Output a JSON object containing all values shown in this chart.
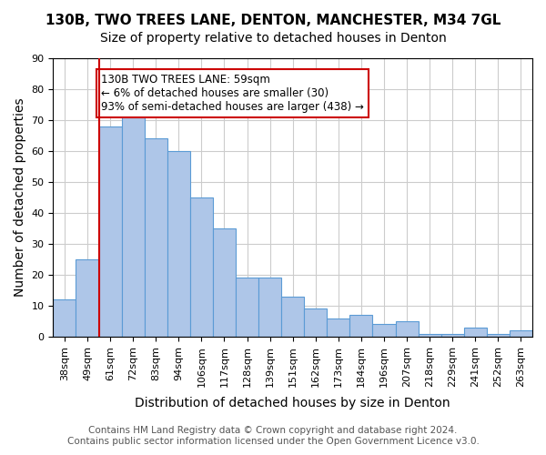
{
  "title_main": "130B, TWO TREES LANE, DENTON, MANCHESTER, M34 7GL",
  "title_sub": "Size of property relative to detached houses in Denton",
  "xlabel": "Distribution of detached houses by size in Denton",
  "ylabel": "Number of detached properties",
  "bar_heights": [
    12,
    25,
    68,
    73,
    64,
    60,
    45,
    35,
    19,
    19,
    13,
    9,
    6,
    7,
    4,
    5,
    1,
    1,
    3,
    1,
    2
  ],
  "x_labels": [
    "38sqm",
    "49sqm",
    "61sqm",
    "72sqm",
    "83sqm",
    "94sqm",
    "106sqm",
    "117sqm",
    "128sqm",
    "139sqm",
    "151sqm",
    "162sqm",
    "173sqm",
    "184sqm",
    "196sqm",
    "207sqm",
    "218sqm",
    "229sqm",
    "241sqm",
    "252sqm",
    "263sqm"
  ],
  "bar_color": "#aec6e8",
  "bar_edge_color": "#5b9bd5",
  "bar_width": 1.0,
  "ylim": [
    0,
    90
  ],
  "yticks": [
    0,
    10,
    20,
    30,
    40,
    50,
    60,
    70,
    80,
    90
  ],
  "grid_color": "#cccccc",
  "background_color": "#ffffff",
  "red_line_x": 1.5,
  "annotation_text": "130B TWO TREES LANE: 59sqm\n← 6% of detached houses are smaller (30)\n93% of semi-detached houses are larger (438) →",
  "annotation_box_color": "#ffffff",
  "annotation_border_color": "#cc0000",
  "footer_line1": "Contains HM Land Registry data © Crown copyright and database right 2024.",
  "footer_line2": "Contains public sector information licensed under the Open Government Licence v3.0.",
  "title_fontsize": 11,
  "subtitle_fontsize": 10,
  "axis_label_fontsize": 10,
  "tick_fontsize": 8,
  "annotation_fontsize": 8.5,
  "footer_fontsize": 7.5
}
